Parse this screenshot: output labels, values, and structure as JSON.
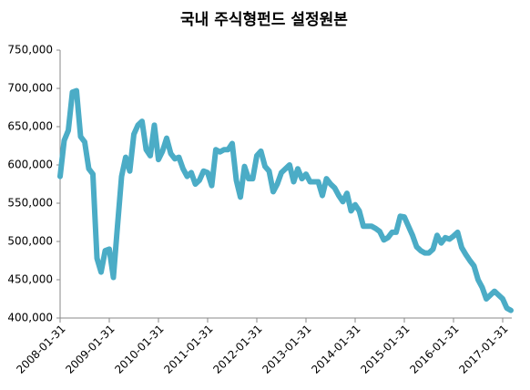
{
  "chart_data": {
    "type": "line",
    "title": "국내 주식형펀드 설정원본",
    "categories": [
      "2008-01-31",
      null,
      null,
      null,
      null,
      null,
      null,
      null,
      null,
      null,
      null,
      null,
      "2009-01-31",
      null,
      null,
      null,
      null,
      null,
      null,
      null,
      null,
      null,
      null,
      null,
      "2010-01-31",
      null,
      null,
      null,
      null,
      null,
      null,
      null,
      null,
      null,
      null,
      null,
      "2011-01-31",
      null,
      null,
      null,
      null,
      null,
      null,
      null,
      null,
      null,
      null,
      null,
      "2012-01-31",
      null,
      null,
      null,
      null,
      null,
      null,
      null,
      null,
      null,
      null,
      null,
      "2013-01-31",
      null,
      null,
      null,
      null,
      null,
      null,
      null,
      null,
      null,
      null,
      null,
      "2014-01-31",
      null,
      null,
      null,
      null,
      null,
      null,
      null,
      null,
      null,
      null,
      null,
      "2015-01-31",
      null,
      null,
      null,
      null,
      null,
      null,
      null,
      null,
      null,
      null,
      null,
      "2016-01-31",
      null,
      null,
      null,
      null,
      null,
      null,
      null,
      null,
      null,
      null,
      null,
      "2017-01-31",
      null,
      null
    ],
    "values": [
      585000,
      632000,
      645000,
      695000,
      697000,
      637000,
      630000,
      595000,
      588000,
      478000,
      460000,
      488000,
      490000,
      453000,
      520000,
      585000,
      610000,
      592000,
      640000,
      652000,
      657000,
      620000,
      612000,
      652000,
      607000,
      618000,
      635000,
      615000,
      608000,
      610000,
      595000,
      585000,
      590000,
      575000,
      580000,
      592000,
      590000,
      573000,
      620000,
      617000,
      620000,
      620000,
      628000,
      580000,
      558000,
      598000,
      582000,
      582000,
      612000,
      618000,
      598000,
      592000,
      565000,
      575000,
      590000,
      595000,
      600000,
      578000,
      595000,
      582000,
      588000,
      578000,
      578000,
      578000,
      560000,
      582000,
      575000,
      570000,
      560000,
      552000,
      563000,
      540000,
      548000,
      540000,
      520000,
      520000,
      520000,
      517000,
      513000,
      502000,
      505000,
      512000,
      512000,
      533000,
      532000,
      520000,
      508000,
      493000,
      488000,
      485000,
      485000,
      490000,
      508000,
      498000,
      505000,
      503000,
      507000,
      512000,
      492000,
      483000,
      475000,
      468000,
      450000,
      440000,
      425000,
      430000,
      435000,
      430000,
      425000,
      413000,
      410000
    ],
    "color": "#4bacc6",
    "ylim": [
      400000,
      750000
    ],
    "yticks": [
      {
        "value": 400000,
        "label": "400,000"
      },
      {
        "value": 450000,
        "label": "450,000"
      },
      {
        "value": 500000,
        "label": "500,000"
      },
      {
        "value": 550000,
        "label": "550,000"
      },
      {
        "value": 600000,
        "label": "600,000"
      },
      {
        "value": 650000,
        "label": "650,000"
      },
      {
        "value": 700000,
        "label": "700,000"
      },
      {
        "value": 750000,
        "label": "750,000"
      }
    ],
    "grid": false
  }
}
